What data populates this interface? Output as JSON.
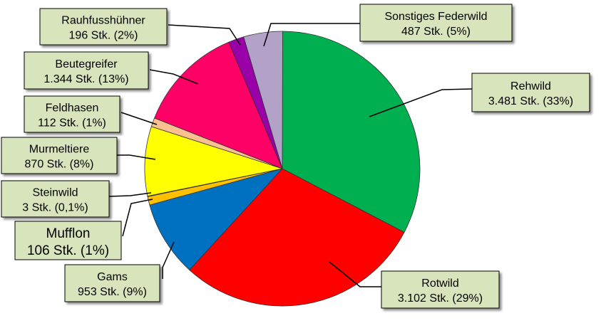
{
  "chart_data": {
    "type": "pie",
    "title": "",
    "slices": [
      {
        "name": "Rehwild",
        "value": 3481,
        "value_label": "3.481 Stk. (33%)",
        "percent": 33,
        "color": "#00b050"
      },
      {
        "name": "Rotwild",
        "value": 3102,
        "value_label": "3.102 Stk. (29%)",
        "percent": 29,
        "color": "#ff0000"
      },
      {
        "name": "Gams",
        "value": 953,
        "value_label": "953 Stk. (9%)",
        "percent": 9,
        "color": "#0070c0"
      },
      {
        "name": "Mufflon",
        "value": 106,
        "value_label": "106 Stk. (1%)",
        "percent": 1,
        "color": "#ffc000"
      },
      {
        "name": "Steinwild",
        "value": 3,
        "value_label": "3 Stk. (0,1%)",
        "percent": 0.1,
        "color": "#000000"
      },
      {
        "name": "Murmeltiere",
        "value": 870,
        "value_label": "870 Stk. (8%)",
        "percent": 8,
        "color": "#ffff00"
      },
      {
        "name": "Feldhasen",
        "value": 112,
        "value_label": "112 Stk. (1%)",
        "percent": 1,
        "color": "#fac090"
      },
      {
        "name": "Beutegreifer",
        "value": 1344,
        "value_label": "1.344 Stk. (13%)",
        "percent": 13,
        "color": "#ff0066"
      },
      {
        "name": "Rauhfusshühner",
        "value": 196,
        "value_label": "196 Stk. (2%)",
        "percent": 2,
        "color": "#9900a8"
      },
      {
        "name": "Sonstiges Federwild",
        "value": 487,
        "value_label": "487 Stk. (5%)",
        "percent": 5,
        "color": "#b3a2c7"
      }
    ],
    "label_box_color": "#d8e4bc"
  }
}
